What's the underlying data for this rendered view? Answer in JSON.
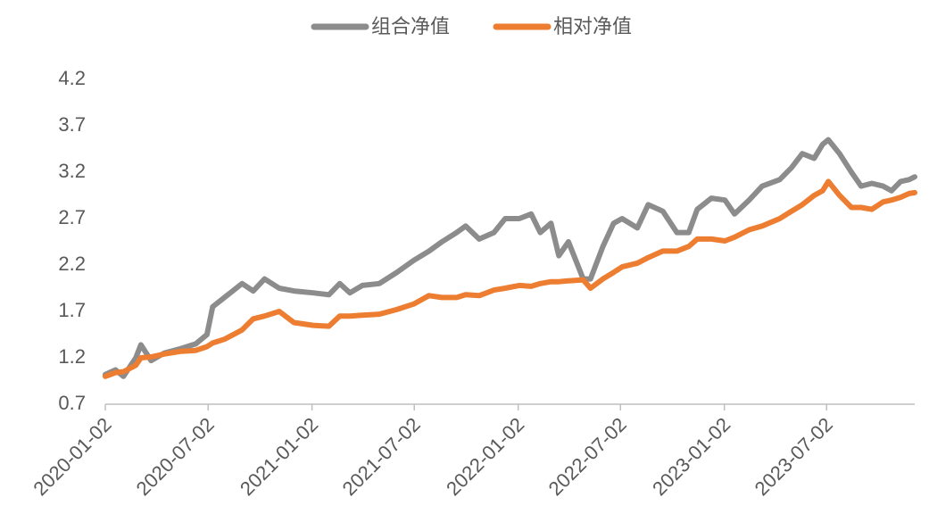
{
  "chart_data": {
    "type": "line",
    "x": [
      "2020-01-02",
      "2020-01-20",
      "2020-02-03",
      "2020-02-25",
      "2020-03-05",
      "2020-03-23",
      "2020-04-15",
      "2020-05-15",
      "2020-06-10",
      "2020-06-30",
      "2020-07-10",
      "2020-07-31",
      "2020-08-31",
      "2020-09-20",
      "2020-10-10",
      "2020-11-05",
      "2020-12-01",
      "2021-01-04",
      "2021-02-01",
      "2021-02-20",
      "2021-03-10",
      "2021-04-01",
      "2021-05-01",
      "2021-06-01",
      "2021-07-01",
      "2021-07-28",
      "2021-08-20",
      "2021-09-15",
      "2021-10-01",
      "2021-10-25",
      "2021-11-20",
      "2021-12-10",
      "2022-01-04",
      "2022-01-25",
      "2022-02-10",
      "2022-03-01",
      "2022-03-15",
      "2022-04-01",
      "2022-04-27",
      "2022-05-10",
      "2022-06-01",
      "2022-06-20",
      "2022-07-05",
      "2022-08-01",
      "2022-08-20",
      "2022-09-15",
      "2022-10-10",
      "2022-10-31",
      "2022-11-15",
      "2022-12-10",
      "2023-01-03",
      "2023-01-20",
      "2023-02-15",
      "2023-03-10",
      "2023-04-10",
      "2023-05-01",
      "2023-05-20",
      "2023-06-10",
      "2023-06-25",
      "2023-07-05",
      "2023-07-25",
      "2023-08-15",
      "2023-09-01",
      "2023-09-20",
      "2023-10-10",
      "2023-10-25",
      "2023-11-10",
      "2023-11-25",
      "2023-12-05"
    ],
    "series": [
      {
        "name": "组合净值",
        "color": "#8c8c8c",
        "values": [
          1.02,
          1.07,
          1.0,
          1.2,
          1.34,
          1.17,
          1.25,
          1.3,
          1.35,
          1.45,
          1.75,
          1.85,
          2.0,
          1.92,
          2.05,
          1.95,
          1.92,
          1.9,
          1.88,
          2.0,
          1.9,
          1.98,
          2.0,
          2.12,
          2.25,
          2.35,
          2.45,
          2.55,
          2.62,
          2.48,
          2.55,
          2.7,
          2.7,
          2.75,
          2.55,
          2.65,
          2.3,
          2.45,
          2.05,
          2.05,
          2.4,
          2.65,
          2.7,
          2.6,
          2.85,
          2.78,
          2.55,
          2.55,
          2.8,
          2.92,
          2.9,
          2.75,
          2.9,
          3.05,
          3.12,
          3.25,
          3.4,
          3.35,
          3.5,
          3.55,
          3.4,
          3.2,
          3.05,
          3.08,
          3.05,
          3.0,
          3.1,
          3.12,
          3.15
        ]
      },
      {
        "name": "相对净值",
        "color": "#ed7d31",
        "values": [
          1.0,
          1.04,
          1.05,
          1.12,
          1.2,
          1.21,
          1.24,
          1.27,
          1.28,
          1.32,
          1.36,
          1.4,
          1.5,
          1.62,
          1.65,
          1.7,
          1.58,
          1.55,
          1.54,
          1.65,
          1.65,
          1.66,
          1.67,
          1.72,
          1.78,
          1.87,
          1.85,
          1.85,
          1.88,
          1.87,
          1.93,
          1.95,
          1.98,
          1.97,
          2.0,
          2.02,
          2.02,
          2.03,
          2.04,
          1.95,
          2.05,
          2.12,
          2.18,
          2.22,
          2.28,
          2.35,
          2.35,
          2.4,
          2.48,
          2.48,
          2.46,
          2.5,
          2.58,
          2.62,
          2.7,
          2.78,
          2.85,
          2.95,
          3.0,
          3.1,
          2.95,
          2.82,
          2.82,
          2.8,
          2.88,
          2.9,
          2.93,
          2.97,
          2.98
        ]
      }
    ],
    "xlim": [
      "2020-01-02",
      "2023-12-05"
    ],
    "xticks": [
      "2020-01-02",
      "2020-07-02",
      "2021-01-02",
      "2021-07-02",
      "2022-01-02",
      "2022-07-02",
      "2023-01-02",
      "2023-07-02"
    ],
    "ylim": [
      0.7,
      4.2
    ],
    "yticks": [
      0.7,
      1.2,
      1.7,
      2.2,
      2.7,
      3.2,
      3.7,
      4.2
    ],
    "legend": "top"
  }
}
